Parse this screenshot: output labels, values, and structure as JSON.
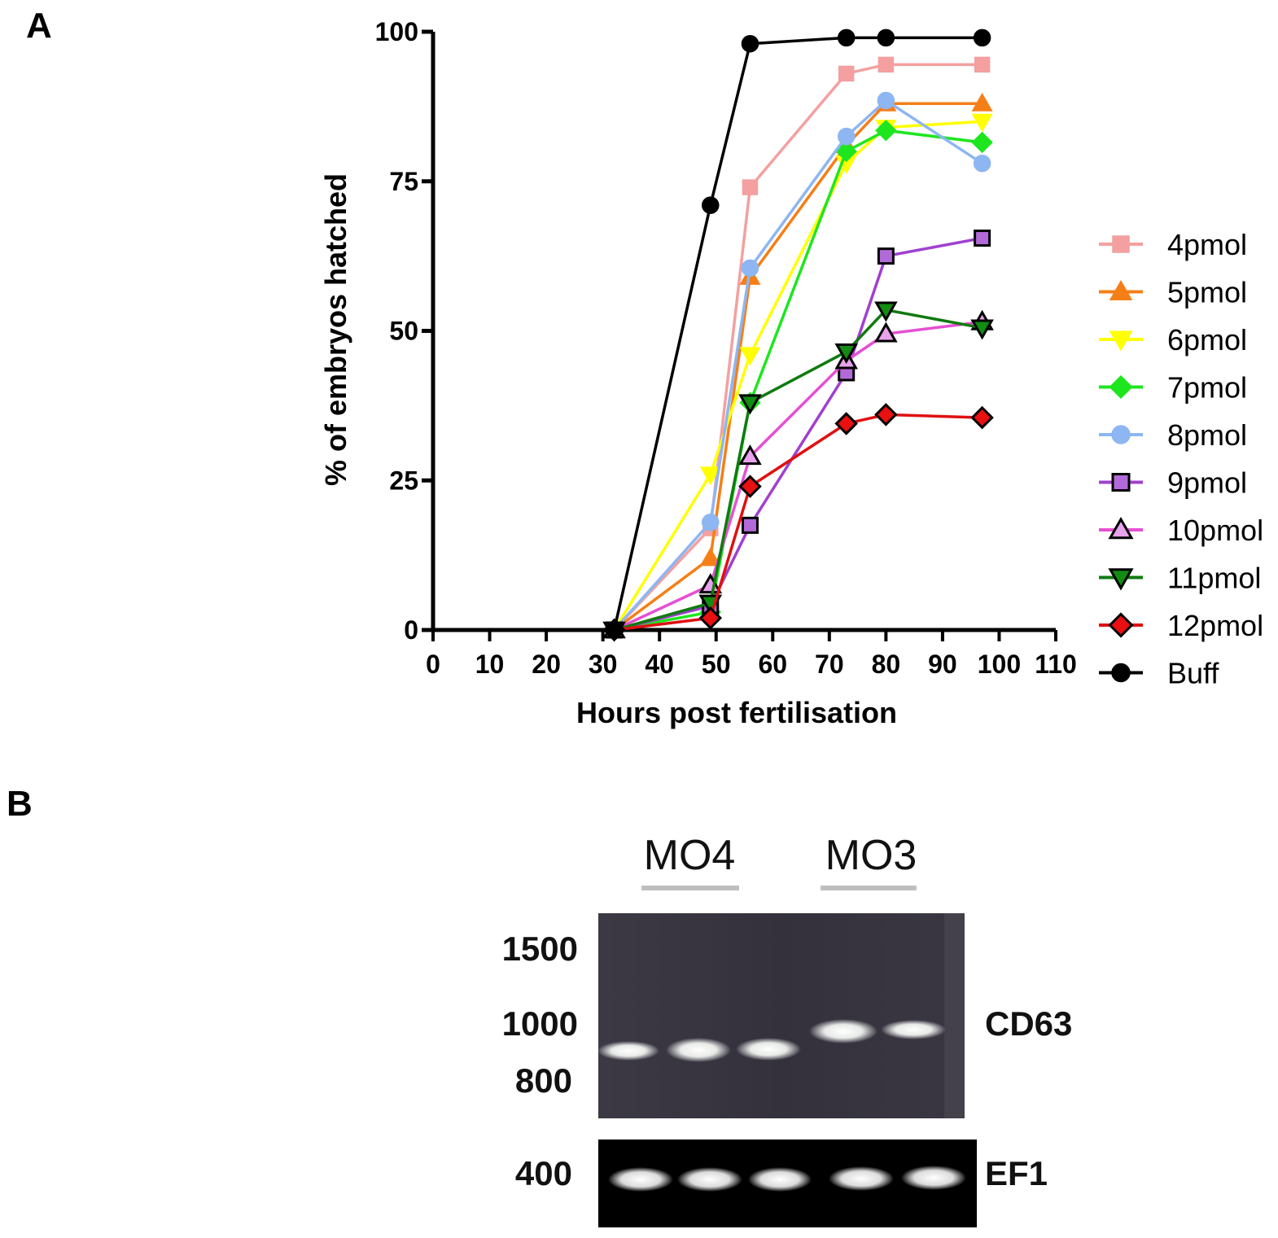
{
  "panel_a_label": "A",
  "panel_b_label": "B",
  "chart_data": {
    "type": "line",
    "title": "",
    "xlabel": "Hours post fertilisation",
    "ylabel": "% of embryos hatched",
    "xlim": [
      0,
      110
    ],
    "ylim": [
      0,
      100
    ],
    "x_ticks": [
      0,
      10,
      20,
      30,
      40,
      50,
      60,
      70,
      80,
      90,
      100,
      110
    ],
    "y_ticks": [
      0,
      25,
      50,
      75,
      100
    ],
    "legend_position": "right",
    "series": [
      {
        "name": "4pmol",
        "color": "#F4A0A0",
        "marker": "square",
        "filled": true,
        "x": [
          32,
          49,
          56,
          73,
          80,
          97
        ],
        "y": [
          0,
          17,
          74,
          93,
          94.5,
          94.5
        ]
      },
      {
        "name": "5pmol",
        "color": "#F57F17",
        "marker": "triangle-up",
        "filled": true,
        "x": [
          32,
          49,
          56,
          73,
          80,
          97
        ],
        "y": [
          0,
          12,
          59,
          81,
          88,
          88
        ]
      },
      {
        "name": "6pmol",
        "color": "#FFFF00",
        "marker": "triangle-down",
        "filled": true,
        "x": [
          32,
          49,
          56,
          73,
          80,
          97
        ],
        "y": [
          0,
          26,
          46,
          78,
          84,
          85
        ]
      },
      {
        "name": "7pmol",
        "color": "#1EE61E",
        "marker": "diamond",
        "filled": true,
        "x": [
          32,
          49,
          56,
          73,
          80,
          97
        ],
        "y": [
          0,
          3,
          38,
          80,
          83.5,
          81.5
        ]
      },
      {
        "name": "8pmol",
        "color": "#8DB6F2",
        "marker": "circle",
        "filled": true,
        "x": [
          32,
          49,
          56,
          73,
          80,
          97
        ],
        "y": [
          0,
          18,
          60.5,
          82.5,
          88.5,
          78
        ]
      },
      {
        "name": "9pmol",
        "color": "#A040D0",
        "marker": "square",
        "filled": false,
        "fill": "#B36AD9",
        "x": [
          32,
          49,
          56,
          73,
          80,
          97
        ],
        "y": [
          0,
          4,
          17.5,
          43,
          62.5,
          65.5
        ]
      },
      {
        "name": "10pmol",
        "color": "#E64FD2",
        "marker": "triangle-up",
        "filled": false,
        "fill": "#E8A3EC",
        "x": [
          32,
          49,
          56,
          73,
          80,
          97
        ],
        "y": [
          0,
          7.5,
          29,
          45,
          49.5,
          51.5
        ]
      },
      {
        "name": "11pmol",
        "color": "#107A10",
        "marker": "triangle-down",
        "filled": false,
        "fill": "#128C12",
        "x": [
          32,
          49,
          56,
          73,
          80,
          97
        ],
        "y": [
          0,
          4.5,
          38,
          46.5,
          53.5,
          50.5
        ]
      },
      {
        "name": "12pmol",
        "color": "#E01010",
        "marker": "diamond",
        "filled": false,
        "fill": "#E81010",
        "x": [
          32,
          49,
          56,
          73,
          80,
          97
        ],
        "y": [
          0,
          2,
          24,
          34.5,
          36,
          35.5
        ]
      },
      {
        "name": "Buff",
        "color": "#000000",
        "marker": "circle",
        "filled": true,
        "x": [
          32,
          49,
          56,
          73,
          80,
          97
        ],
        "y": [
          0,
          71,
          98,
          99,
          99,
          99
        ]
      }
    ]
  },
  "gel": {
    "lane_group_labels": [
      "MO4",
      "MO3"
    ],
    "ladder_labels": [
      "1500",
      "1000",
      "800",
      "400"
    ],
    "band_labels": [
      "CD63",
      "EF1"
    ]
  }
}
